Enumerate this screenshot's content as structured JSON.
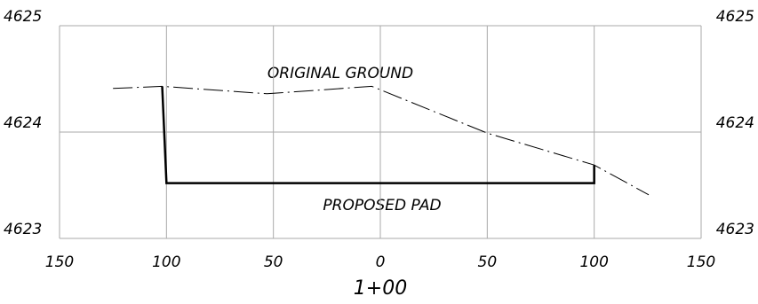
{
  "chart_data": {
    "type": "line",
    "x_label": "1+00",
    "annotations": [
      "ORIGINAL GROUND",
      "PROPOSED PAD"
    ],
    "xlim": [
      -150,
      150
    ],
    "xticks": [
      {
        "value": -150,
        "label": "150"
      },
      {
        "value": -100,
        "label": "100"
      },
      {
        "value": -50,
        "label": "50"
      },
      0,
      50,
      100,
      150
    ],
    "ylim": [
      4623,
      4625
    ],
    "yticks": [
      4623,
      4624,
      4625
    ],
    "grid": true,
    "series": [
      {
        "color": "#000000",
        "style": "dashdot",
        "x": [
          -125,
          -102,
          -53,
          -4,
          50,
          100,
          125.5
        ],
        "values": [
          4624.41,
          4624.43,
          4624.36,
          4624.43,
          4623.99,
          4623.69,
          4623.41
        ]
      },
      {
        "color": "#000000",
        "style": "solid",
        "x": [
          -102,
          -100,
          100,
          100
        ],
        "values": [
          4624.43,
          4623.52,
          4623.52,
          4623.69
        ]
      }
    ]
  }
}
